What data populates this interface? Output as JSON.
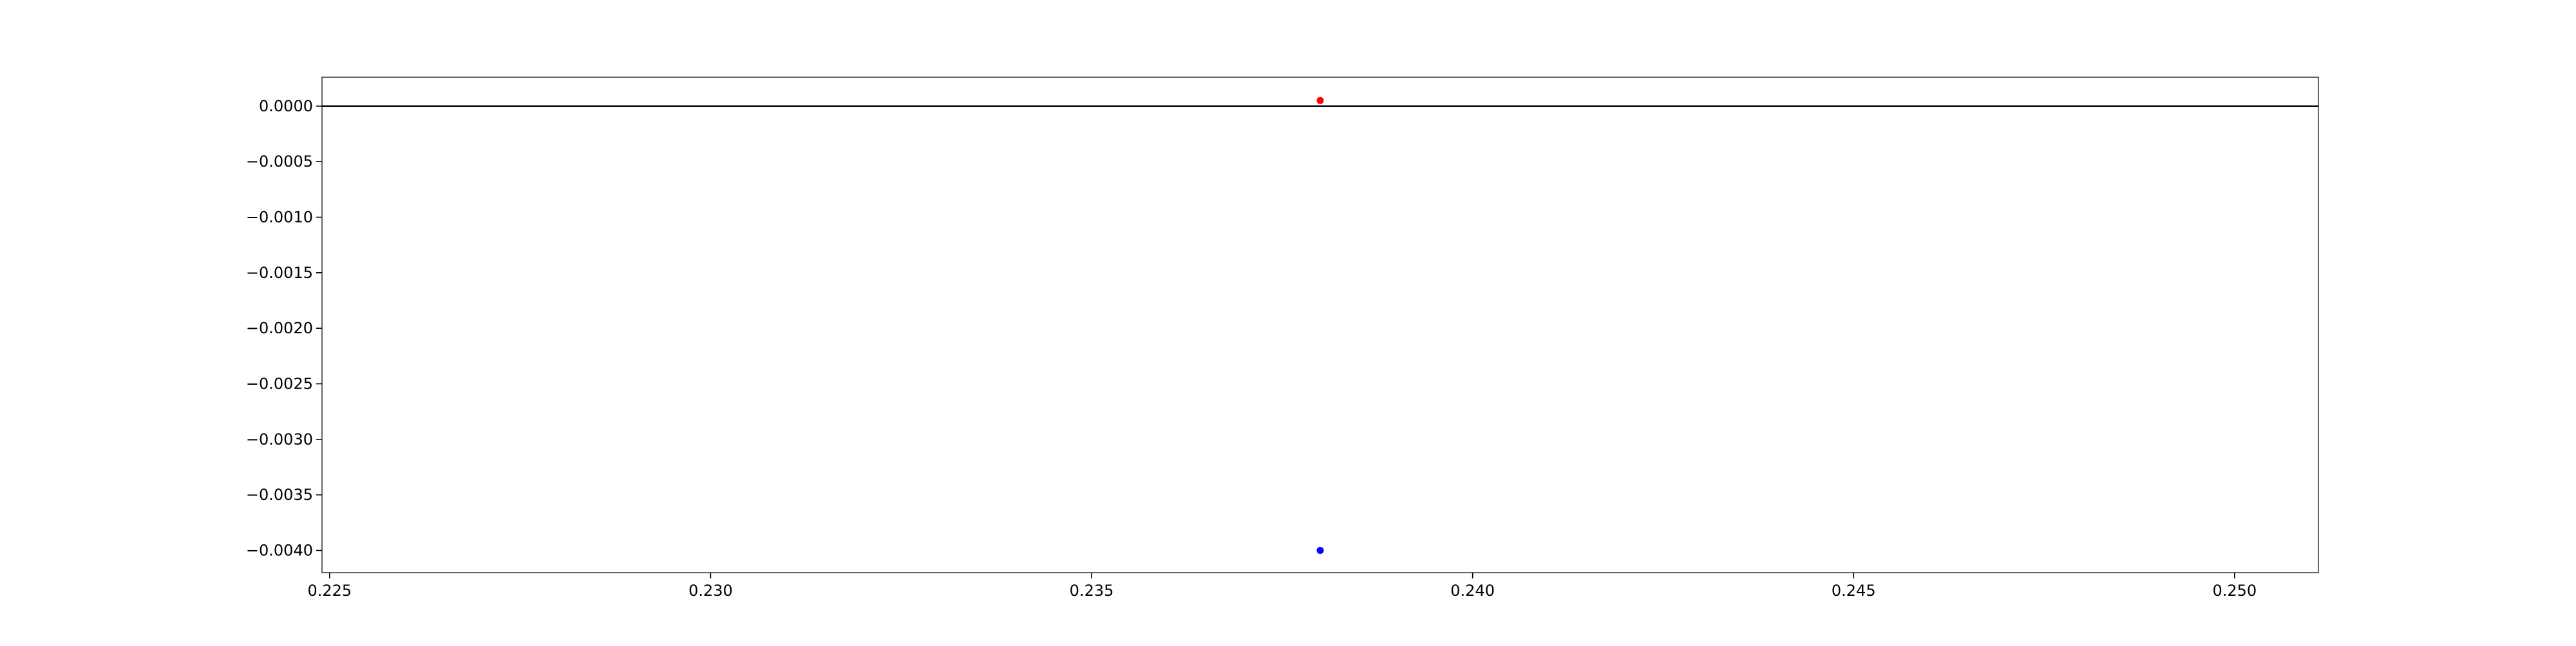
{
  "chart_data": {
    "type": "scatter",
    "title": "",
    "xlabel": "",
    "ylabel": "",
    "xlim": [
      0.2249,
      0.2511
    ],
    "ylim": [
      -0.0042,
      0.00026
    ],
    "grid": false,
    "x_ticks": [
      {
        "value": 0.225,
        "label": "0.225"
      },
      {
        "value": 0.23,
        "label": "0.230"
      },
      {
        "value": 0.235,
        "label": "0.235"
      },
      {
        "value": 0.24,
        "label": "0.240"
      },
      {
        "value": 0.245,
        "label": "0.245"
      },
      {
        "value": 0.25,
        "label": "0.250"
      }
    ],
    "y_ticks": [
      {
        "value": 0.0,
        "label": "0.0000"
      },
      {
        "value": -0.0005,
        "label": "−0.0005"
      },
      {
        "value": -0.001,
        "label": "−0.0010"
      },
      {
        "value": -0.0015,
        "label": "−0.0015"
      },
      {
        "value": -0.002,
        "label": "−0.0020"
      },
      {
        "value": -0.0025,
        "label": "−0.0025"
      },
      {
        "value": -0.003,
        "label": "−0.0030"
      },
      {
        "value": -0.0035,
        "label": "−0.0035"
      },
      {
        "value": -0.004,
        "label": "−0.0040"
      }
    ],
    "reference_lines": [
      {
        "axis": "y",
        "value": 0.0,
        "color": "#000000"
      }
    ],
    "series": [
      {
        "color": "#ff0000",
        "points": [
          {
            "x": 0.238,
            "y": 5e-05
          }
        ]
      },
      {
        "color": "#0000ff",
        "points": [
          {
            "x": 0.238,
            "y": -0.004
          }
        ]
      }
    ]
  }
}
